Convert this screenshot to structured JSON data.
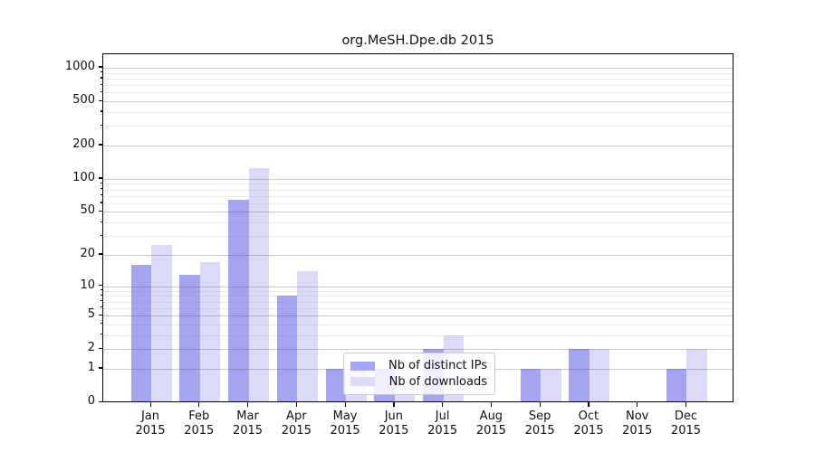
{
  "chart_data": {
    "type": "bar",
    "title": "org.MeSH.Dpe.db 2015",
    "y_scale": "log1p",
    "grid": true,
    "ylim": [
      0,
      1320
    ],
    "categories": [
      "Jan",
      "Feb",
      "Mar",
      "Apr",
      "May",
      "Jun",
      "Jul",
      "Aug",
      "Sep",
      "Oct",
      "Nov",
      "Dec"
    ],
    "category_year": "2015",
    "series": [
      {
        "name": "Nb of distinct IPs",
        "color": "#a4a4f0",
        "values": [
          16,
          13,
          65,
          8,
          1,
          1,
          2,
          0,
          1,
          2,
          0,
          1
        ]
      },
      {
        "name": "Nb of downloads",
        "color": "#dbdbf8",
        "values": [
          25,
          17,
          125,
          14,
          1,
          1,
          3,
          0,
          1,
          2,
          0,
          2
        ]
      }
    ],
    "y_major_ticks": [
      1000,
      500,
      200,
      100,
      50,
      20,
      10,
      5,
      2,
      1,
      0
    ],
    "y_grid_values": [
      1,
      2,
      3,
      4,
      5,
      6,
      7,
      8,
      9,
      10,
      20,
      30,
      40,
      50,
      60,
      70,
      80,
      90,
      100,
      200,
      300,
      400,
      500,
      600,
      700,
      800,
      900,
      1000
    ],
    "legend_position": "lower-center"
  }
}
